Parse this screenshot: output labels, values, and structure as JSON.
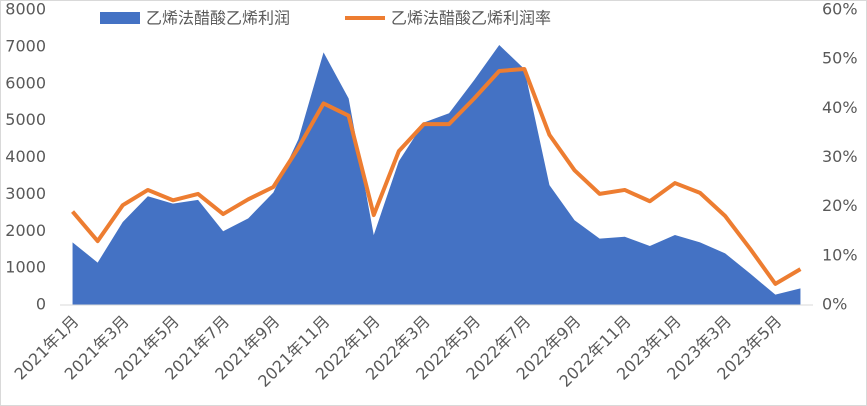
{
  "chart_data": {
    "type": "area-line",
    "categories": [
      "2021年1月",
      null,
      "2021年3月",
      null,
      "2021年5月",
      null,
      "2021年7月",
      null,
      "2021年9月",
      null,
      "2021年11月",
      null,
      "2022年1月",
      null,
      "2022年3月",
      null,
      "2022年5月",
      null,
      "2022年7月",
      null,
      "2022年9月",
      null,
      "2022年11月",
      null,
      "2023年1月",
      null,
      "2023年3月",
      null,
      "2023年5月",
      null
    ],
    "series": [
      {
        "name": "乙烯法醋酸乙烯利润",
        "type": "area",
        "color": "#4472c4",
        "values": [
          1700,
          1150,
          2250,
          2950,
          2750,
          2850,
          2000,
          2350,
          3050,
          4500,
          6850,
          5600,
          1900,
          3900,
          4950,
          5200,
          6100,
          7050,
          6400,
          3250,
          2300,
          1800,
          1850,
          1600,
          1900,
          1700,
          1400,
          850,
          280,
          450
        ]
      },
      {
        "name": "乙烯法醋酸乙烯利润率",
        "type": "line",
        "axis": "y2",
        "color": "#ed7d31",
        "values": [
          19,
          13,
          20.3,
          23.4,
          21.3,
          22.6,
          18.5,
          21.5,
          24,
          32,
          41,
          38.5,
          18.3,
          31.3,
          36.8,
          36.8,
          42,
          47.6,
          48,
          34.6,
          27.4,
          22.6,
          23.4,
          21.1,
          24.8,
          22.8,
          18.1,
          11.4,
          4.3,
          7.3
        ]
      }
    ],
    "ylim": [
      0,
      8000
    ],
    "yticks": [
      0,
      1000,
      2000,
      3000,
      4000,
      5000,
      6000,
      7000,
      8000
    ],
    "y2lim": [
      0,
      60
    ],
    "y2ticks": [
      {
        "value": 0,
        "label": "0%"
      },
      {
        "value": 10,
        "label": "10%"
      },
      {
        "value": 20,
        "label": "20%"
      },
      {
        "value": 30,
        "label": "30%"
      },
      {
        "value": 40,
        "label": "40%"
      },
      {
        "value": 50,
        "label": "50%"
      },
      {
        "value": 60,
        "label": "60%"
      }
    ],
    "legend": "top"
  }
}
